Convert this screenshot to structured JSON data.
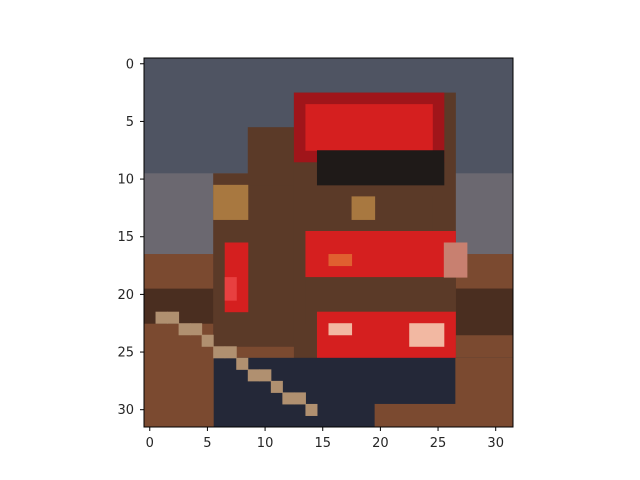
{
  "image": {
    "description_kind": "pixelated 32x32 photo of a red truck on a road",
    "grid": [
      32,
      32
    ],
    "palette": {
      "sky": "#4f5462",
      "sky_low": "#6b6870",
      "truck_red": "#d51f1f",
      "truck_red_dark": "#a0151a",
      "truck_body": "#5b3a28",
      "truck_dark": "#1f1a18",
      "ground": "#7b4a30",
      "ground_dark": "#4a2e20",
      "road": "#242838",
      "stripe": "#b09070",
      "light": "#f2b8a2",
      "orange": "#e06030",
      "tan": "#a87840"
    }
  },
  "axes": {
    "x_ticks": [
      "0",
      "5",
      "10",
      "15",
      "20",
      "25",
      "30"
    ],
    "y_ticks": [
      "0",
      "5",
      "10",
      "15",
      "20",
      "25",
      "30"
    ],
    "xlim": [
      -0.5,
      31.5
    ],
    "ylim": [
      31.5,
      -0.5
    ]
  }
}
